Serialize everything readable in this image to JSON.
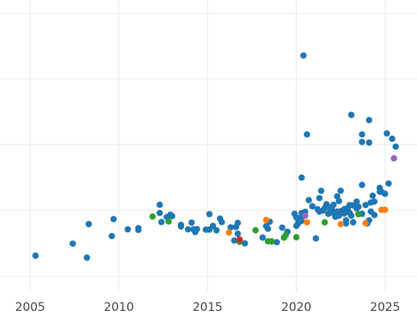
{
  "chart_data": {
    "type": "scatter",
    "title": "",
    "xlabel": "",
    "ylabel": "",
    "xlim": [
      2003.3,
      2026.8
    ],
    "ylim": [
      0,
      1
    ],
    "grid": true,
    "x_gridlines": [
      2005,
      2010,
      2015,
      2020,
      2025
    ],
    "y_gridlines": [
      0.054,
      0.28,
      0.505,
      0.73,
      0.954
    ],
    "x_ticks": [
      "2005",
      "2010",
      "2015",
      "2020",
      "2025"
    ],
    "colors": {
      "blue": "#1f77b4",
      "orange": "#ff7f0e",
      "green": "#2ca02c",
      "red": "#d62728",
      "purple": "#9467bd"
    },
    "series": [
      {
        "color_key": "blue",
        "points": [
          [
            2005.3,
            0.125
          ],
          [
            2007.4,
            0.166
          ],
          [
            2008.2,
            0.118
          ],
          [
            2008.3,
            0.233
          ],
          [
            2009.6,
            0.192
          ],
          [
            2009.7,
            0.25
          ],
          [
            2010.5,
            0.215
          ],
          [
            2011.1,
            0.219
          ],
          [
            2011.1,
            0.213
          ],
          [
            2012.3,
            0.299
          ],
          [
            2012.3,
            0.271
          ],
          [
            2012.4,
            0.24
          ],
          [
            2012.7,
            0.257
          ],
          [
            2012.9,
            0.265
          ],
          [
            2013.0,
            0.26
          ],
          [
            2013.5,
            0.23
          ],
          [
            2013.5,
            0.225
          ],
          [
            2013.9,
            0.215
          ],
          [
            2014.1,
            0.238
          ],
          [
            2014.2,
            0.215
          ],
          [
            2014.3,
            0.206
          ],
          [
            2014.4,
            0.216
          ],
          [
            2014.9,
            0.214
          ],
          [
            2015.1,
            0.267
          ],
          [
            2015.1,
            0.214
          ],
          [
            2015.3,
            0.227
          ],
          [
            2015.5,
            0.212
          ],
          [
            2015.7,
            0.252
          ],
          [
            2015.8,
            0.24
          ],
          [
            2016.3,
            0.222
          ],
          [
            2016.5,
            0.177
          ],
          [
            2016.6,
            0.223
          ],
          [
            2016.7,
            0.237
          ],
          [
            2016.7,
            0.2
          ],
          [
            2016.8,
            0.175
          ],
          [
            2017.1,
            0.167
          ],
          [
            2018.1,
            0.187
          ],
          [
            2018.3,
            0.226
          ],
          [
            2018.4,
            0.217
          ],
          [
            2018.5,
            0.241
          ],
          [
            2018.6,
            0.173
          ],
          [
            2018.9,
            0.171
          ],
          [
            2019.2,
            0.221
          ],
          [
            2019.5,
            0.207
          ],
          [
            2019.9,
            0.268
          ],
          [
            2020.0,
            0.227
          ],
          [
            2020.0,
            0.256
          ],
          [
            2020.1,
            0.248
          ],
          [
            2020.1,
            0.235
          ],
          [
            2020.2,
            0.253
          ],
          [
            2020.3,
            0.244
          ],
          [
            2020.3,
            0.271
          ],
          [
            2020.3,
            0.392
          ],
          [
            2020.4,
            0.81
          ],
          [
            2020.5,
            0.275
          ],
          [
            2020.6,
            0.54
          ],
          [
            2020.7,
            0.315
          ],
          [
            2020.9,
            0.294
          ],
          [
            2021.1,
            0.184
          ],
          [
            2021.2,
            0.284
          ],
          [
            2021.3,
            0.276
          ],
          [
            2021.3,
            0.322
          ],
          [
            2021.4,
            0.347
          ],
          [
            2021.5,
            0.279
          ],
          [
            2021.6,
            0.288
          ],
          [
            2021.7,
            0.301
          ],
          [
            2021.8,
            0.268
          ],
          [
            2021.9,
            0.29
          ],
          [
            2021.9,
            0.275
          ],
          [
            2022.0,
            0.286
          ],
          [
            2022.1,
            0.27
          ],
          [
            2022.1,
            0.299
          ],
          [
            2022.2,
            0.258
          ],
          [
            2022.3,
            0.276
          ],
          [
            2022.3,
            0.328
          ],
          [
            2022.4,
            0.312
          ],
          [
            2022.4,
            0.262
          ],
          [
            2022.5,
            0.277
          ],
          [
            2022.5,
            0.347
          ],
          [
            2022.7,
            0.269
          ],
          [
            2022.7,
            0.284
          ],
          [
            2022.8,
            0.235
          ],
          [
            2022.8,
            0.246
          ],
          [
            2022.9,
            0.288
          ],
          [
            2023.0,
            0.272
          ],
          [
            2023.0,
            0.298
          ],
          [
            2023.1,
            0.262
          ],
          [
            2023.1,
            0.607
          ],
          [
            2023.2,
            0.297
          ],
          [
            2023.2,
            0.239
          ],
          [
            2023.4,
            0.287
          ],
          [
            2023.4,
            0.31
          ],
          [
            2023.5,
            0.292
          ],
          [
            2023.7,
            0.268
          ],
          [
            2023.7,
            0.514
          ],
          [
            2023.7,
            0.54
          ],
          [
            2023.7,
            0.367
          ],
          [
            2023.9,
            0.298
          ],
          [
            2024.0,
            0.235
          ],
          [
            2024.1,
            0.246
          ],
          [
            2024.1,
            0.589
          ],
          [
            2024.1,
            0.512
          ],
          [
            2024.2,
            0.307
          ],
          [
            2024.2,
            0.276
          ],
          [
            2024.3,
            0.33
          ],
          [
            2024.4,
            0.264
          ],
          [
            2024.4,
            0.31
          ],
          [
            2024.7,
            0.357
          ],
          [
            2024.7,
            0.344
          ],
          [
            2024.8,
            0.343
          ],
          [
            2025.0,
            0.337
          ],
          [
            2025.1,
            0.543
          ],
          [
            2025.2,
            0.372
          ],
          [
            2025.4,
            0.525
          ],
          [
            2025.6,
            0.498
          ]
        ]
      },
      {
        "color_key": "orange",
        "points": [
          [
            2016.2,
            0.204
          ],
          [
            2018.3,
            0.247
          ],
          [
            2020.6,
            0.239
          ],
          [
            2022.5,
            0.233
          ],
          [
            2023.9,
            0.236
          ],
          [
            2024.8,
            0.282
          ],
          [
            2025.0,
            0.282
          ]
        ]
      },
      {
        "color_key": "green",
        "points": [
          [
            2011.9,
            0.259
          ],
          [
            2012.8,
            0.242
          ],
          [
            2016.8,
            0.172
          ],
          [
            2017.7,
            0.212
          ],
          [
            2018.4,
            0.174
          ],
          [
            2018.6,
            0.174
          ],
          [
            2019.3,
            0.187
          ],
          [
            2019.4,
            0.195
          ],
          [
            2020.0,
            0.188
          ],
          [
            2021.6,
            0.239
          ],
          [
            2023.5,
            0.267
          ]
        ]
      },
      {
        "color_key": "red",
        "points": [
          [
            2016.8,
            0.18
          ]
        ]
      },
      {
        "color_key": "purple",
        "points": [
          [
            2020.5,
            0.262
          ],
          [
            2025.5,
            0.458
          ]
        ]
      }
    ]
  }
}
